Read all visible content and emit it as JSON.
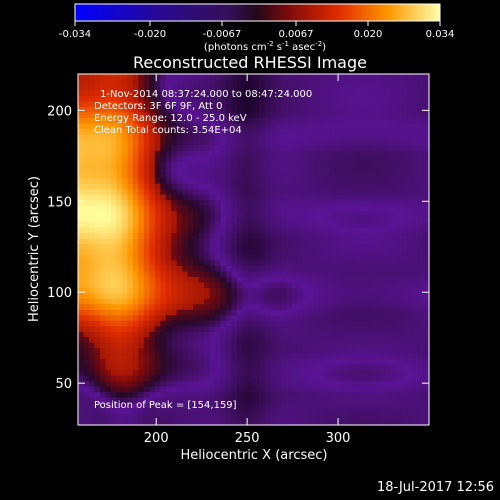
{
  "chart_data": {
    "type": "heatmap",
    "title": "Reconstructed RHESSI Image",
    "colorbar": {
      "ticks": [
        "-0.034",
        "-0.020",
        "-0.0067",
        "0.0067",
        "0.020",
        "0.034"
      ],
      "label_main": "(photons cm",
      "label_sup1": "-2",
      "label_mid1": " s",
      "label_sup2": "-1",
      "label_mid2": " asec",
      "label_sup3": "-2",
      "label_end": ")",
      "range": [
        -0.034,
        0.034
      ]
    },
    "xlabel": "Heliocentric X (arcsec)",
    "ylabel": "Heliocentric Y (arcsec)",
    "xticks": [
      200,
      250,
      300
    ],
    "yticks": [
      50,
      100,
      150,
      200
    ],
    "xlim": [
      157,
      350
    ],
    "ylim": [
      27,
      220
    ],
    "annotations": [
      "1-Nov-2014 08:37:24.000 to 08:47:24.000",
      "Detectors: 3F 6F 9F, Att 0",
      "Energy Range: 12.0 - 25.0 keV",
      "Clean    Total counts: 3.54E+04"
    ],
    "peak_label": "Position of Peak = [154,159]",
    "peak": [
      154,
      159
    ]
  },
  "timestamp": "18-Jul-2017 12:56"
}
